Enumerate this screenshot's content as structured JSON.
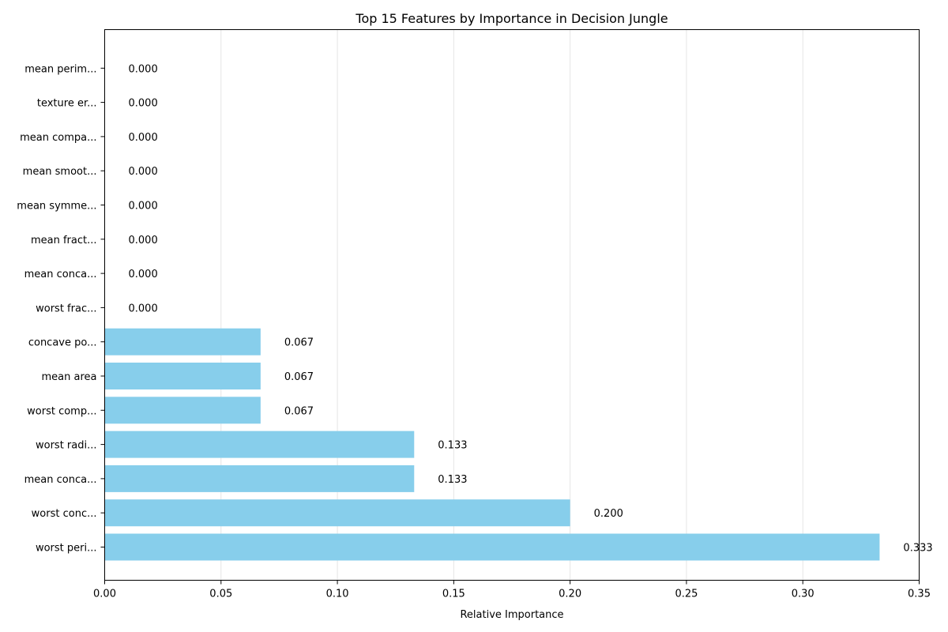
{
  "chart_data": {
    "type": "bar",
    "orientation": "horizontal",
    "title": "Top 15 Features by Importance in Decision Jungle",
    "xlabel": "Relative Importance",
    "ylabel": "",
    "xlim": [
      0,
      0.35
    ],
    "xticks": [
      "0.00",
      "0.05",
      "0.10",
      "0.15",
      "0.20",
      "0.25",
      "0.30",
      "0.35"
    ],
    "xtick_values": [
      0,
      0.05,
      0.1,
      0.15,
      0.2,
      0.25,
      0.3,
      0.35
    ],
    "grid": "x-axis vertical lines",
    "bar_color": "#87ceeb",
    "categories": [
      "worst peri...",
      "worst conc...",
      "mean conca...",
      "worst radi...",
      "worst comp...",
      "mean area",
      "concave po...",
      "worst frac...",
      "mean conca...",
      "mean fract...",
      "mean symme...",
      "mean smoot...",
      "mean compa...",
      "texture er...",
      "mean perim..."
    ],
    "values": [
      0.333,
      0.2,
      0.133,
      0.133,
      0.067,
      0.067,
      0.067,
      0.0,
      0.0,
      0.0,
      0.0,
      0.0,
      0.0,
      0.0,
      0.0
    ],
    "data_labels": [
      "0.333",
      "0.200",
      "0.133",
      "0.133",
      "0.067",
      "0.067",
      "0.067",
      "0.000",
      "0.000",
      "0.000",
      "0.000",
      "0.000",
      "0.000",
      "0.000",
      "0.000"
    ]
  }
}
